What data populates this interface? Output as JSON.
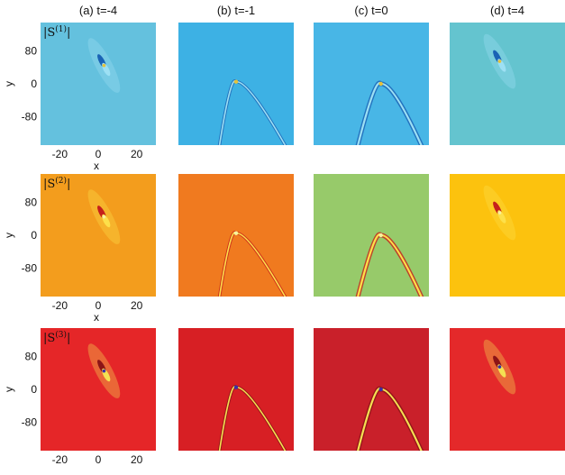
{
  "chart_data": {
    "type": "heatmap",
    "columns": [
      {
        "label": "(a) t=-4",
        "t": -4
      },
      {
        "label": "(b) t=-1",
        "t": -1
      },
      {
        "label": "(c) t=0",
        "t": 0
      },
      {
        "label": "(d) t=4",
        "t": 4
      }
    ],
    "rows": [
      {
        "component": "|S(1)|",
        "label_base": "|S",
        "label_sup": "(1)",
        "label_end": "|",
        "panel_colors": [
          "#64c1de",
          "#3db1e4",
          "#48b6e6",
          "#64c4cf"
        ],
        "feature_colors": {
          "light": "#9de0f4",
          "dark": "#1a63b5",
          "hot": "#e6c23a"
        }
      },
      {
        "component": "|S(2)|",
        "label_base": "|S",
        "label_sup": "(2)",
        "label_end": "|",
        "panel_colors": [
          "#f39d1d",
          "#f07a1f",
          "#97ca6a",
          "#fcc20e"
        ],
        "feature_colors": {
          "light": "#fde04a",
          "dark": "#c5201b",
          "hot": "#f7f2a0"
        }
      },
      {
        "component": "|S(3)|",
        "label_base": "|S",
        "label_sup": "(3)",
        "label_end": "|",
        "panel_colors": [
          "#e52628",
          "#d71f24",
          "#c9202a",
          "#e4292a"
        ],
        "feature_colors": {
          "light": "#f4e152",
          "dark": "#8c1416",
          "hot": "#3a2ea8"
        }
      }
    ],
    "xlabel": "x",
    "ylabel": "y",
    "x_ticks": [
      -20,
      0,
      20
    ],
    "y_ticks": [
      80,
      0,
      -80
    ],
    "xlim": [
      -30,
      30
    ],
    "ylim": [
      -150,
      150
    ],
    "features": [
      {
        "col": 0,
        "kind": "lump",
        "center": [
          3,
          45
        ],
        "angle_deg": 62
      },
      {
        "col": 1,
        "kind": "parabola",
        "apex": [
          0,
          5
        ]
      },
      {
        "col": 2,
        "kind": "parabola",
        "apex": [
          5,
          0
        ]
      },
      {
        "col": 3,
        "kind": "lump",
        "center": [
          -4,
          55
        ],
        "angle_deg": 62
      }
    ]
  }
}
